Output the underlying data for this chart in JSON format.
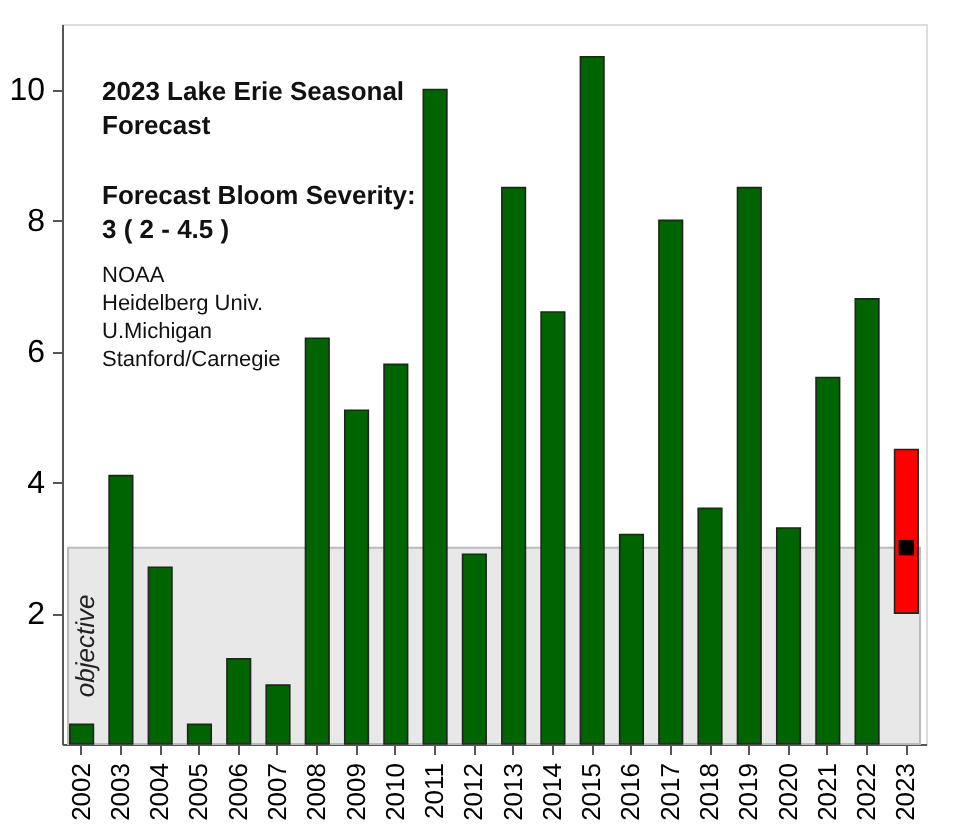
{
  "chart_data": {
    "type": "bar",
    "categories": [
      "2002",
      "2003",
      "2004",
      "2005",
      "2006",
      "2007",
      "2008",
      "2009",
      "2010",
      "2011",
      "2012",
      "2013",
      "2014",
      "2015",
      "2016",
      "2017",
      "2018",
      "2019",
      "2020",
      "2021",
      "2022",
      "2023"
    ],
    "values": [
      0.3,
      4.1,
      2.7,
      0.3,
      1.3,
      0.9,
      6.2,
      5.1,
      5.8,
      10,
      2.9,
      8.5,
      6.6,
      10.5,
      3.2,
      8,
      3.6,
      8.5,
      3.3,
      5.6,
      6.8,
      2.5
    ],
    "base": [
      null,
      null,
      null,
      null,
      null,
      null,
      null,
      null,
      null,
      null,
      null,
      null,
      null,
      null,
      null,
      null,
      null,
      null,
      null,
      null,
      null,
      2
    ],
    "colors": [
      "#006400",
      "#006400",
      "#006400",
      "#006400",
      "#006400",
      "#006400",
      "#006400",
      "#006400",
      "#006400",
      "#006400",
      "#006400",
      "#006400",
      "#006400",
      "#006400",
      "#006400",
      "#006400",
      "#006400",
      "#006400",
      "#006400",
      "#006400",
      "#006400",
      "#ff0000"
    ],
    "series": [
      {
        "type": "scatter",
        "marker": "square",
        "color": "#000000",
        "values": [
          null,
          null,
          null,
          null,
          null,
          null,
          null,
          null,
          null,
          null,
          null,
          null,
          null,
          null,
          null,
          null,
          null,
          null,
          null,
          null,
          null,
          3
        ]
      }
    ],
    "ylim": [
      0,
      11
    ],
    "yticks": [
      2,
      4,
      6,
      8,
      10
    ],
    "grid": false,
    "bands": [
      {
        "axis": "y",
        "from": 0,
        "to": 3,
        "label": "objective",
        "color": "#e8e8e8"
      }
    ],
    "annotations": [
      "2023 Lake Erie Seasonal\nForecast",
      "Forecast Bloom Severity:\n 3 ( 2 - 4.5 )",
      "NOAA\nHeidelberg Univ.\nU.Michigan\nStanford/Carnegie"
    ]
  }
}
